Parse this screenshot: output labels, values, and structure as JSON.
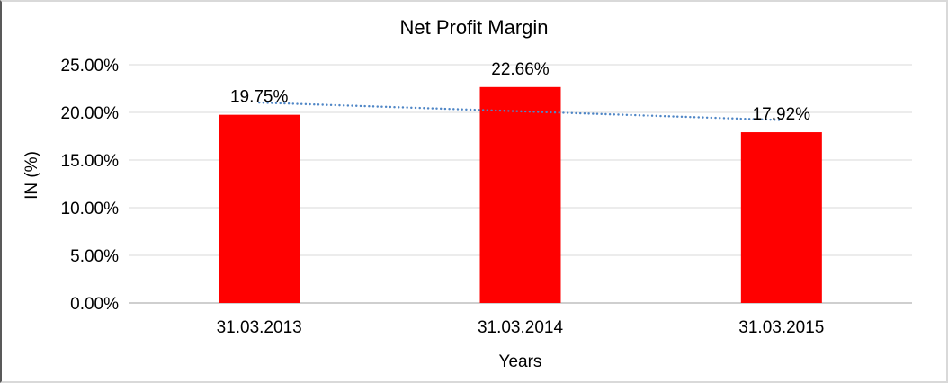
{
  "chart_data": {
    "type": "bar",
    "title": "Net Profit Margin",
    "categories": [
      "31.03.2013",
      "31.03.2014",
      "31.03.2015"
    ],
    "values": [
      19.75,
      22.66,
      17.92
    ],
    "data_labels": [
      "19.75%",
      "22.66%",
      "17.92%"
    ],
    "xlabel": "Years",
    "ylabel": "IN (%)",
    "ylim": [
      0,
      25
    ],
    "y_ticks": [
      0,
      5,
      10,
      15,
      20,
      25
    ],
    "y_tick_labels": [
      "0.00%",
      "5.00%",
      "10.00%",
      "15.00%",
      "20.00%",
      "25.00%"
    ],
    "grid": true,
    "legend": "none",
    "bar_color": "#FF0000",
    "grid_color": "#D9D9D9",
    "axis_color": "#BFBFBF",
    "text_color": "#000000",
    "trendline": {
      "type": "linear",
      "style": "dotted",
      "color": "#4F86C6"
    }
  }
}
